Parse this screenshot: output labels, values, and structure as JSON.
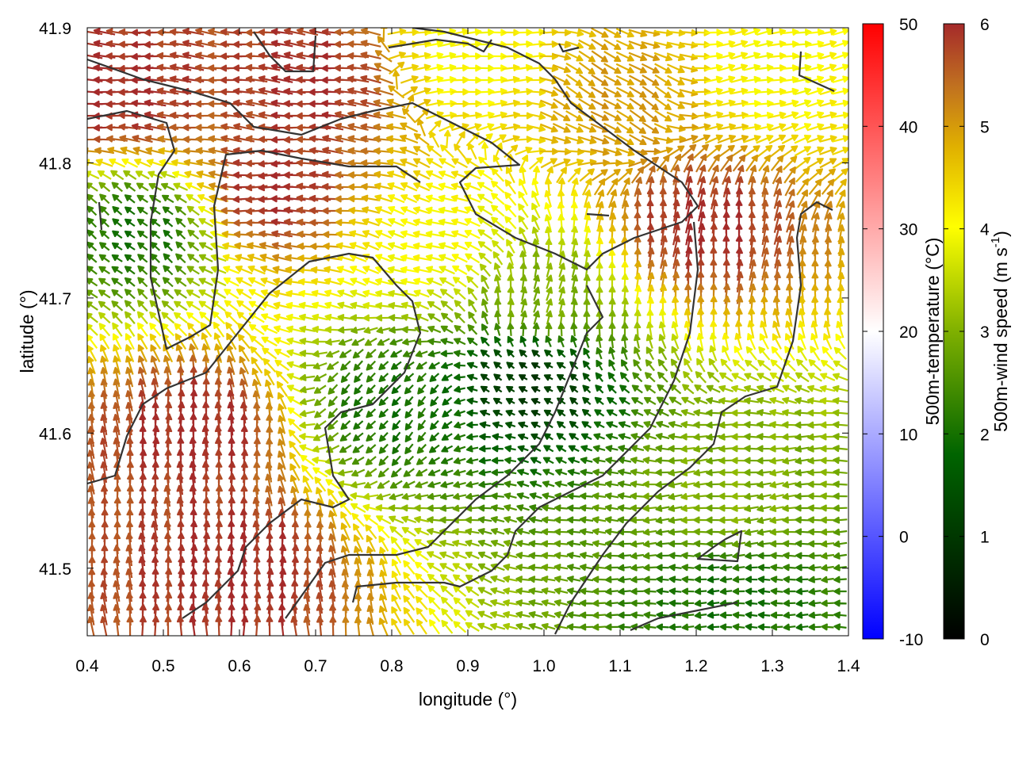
{
  "chart_data": {
    "type": "quiver",
    "xlabel": "longitude (°)",
    "ylabel": "latitude (°)",
    "xlim": [
      0.4,
      1.4
    ],
    "ylim": [
      41.45,
      41.9
    ],
    "x_ticks": [
      "0.4",
      "0.5",
      "0.6",
      "0.7",
      "0.8",
      "0.9",
      "1.0",
      "1.1",
      "1.2",
      "1.3",
      "1.4"
    ],
    "y_ticks": [
      "41.5",
      "41.6",
      "41.7",
      "41.8",
      "41.9"
    ],
    "temperature_colorbar": {
      "label": "500m-temperature (°C)",
      "range": [
        -10,
        50
      ],
      "ticks": [
        "-10",
        "0",
        "10",
        "20",
        "30",
        "40",
        "50"
      ],
      "colors": [
        "#0000ff",
        "#ffffff",
        "#ff0000"
      ]
    },
    "wind_colorbar": {
      "label_main": "500m-wind speed (m s",
      "label_sup": "-1",
      "label_end": ")",
      "range": [
        0,
        6
      ],
      "ticks": [
        "0",
        "1",
        "2",
        "3",
        "4",
        "5",
        "6"
      ],
      "colors": [
        "#000000",
        "#006400",
        "#7fb000",
        "#ffff00",
        "#e0b000",
        "#c07020",
        "#a52a2a"
      ]
    },
    "coastline_color": "#333333",
    "wind_field": {
      "description_points": [
        {
          "lon": 0.45,
          "lat": 41.85,
          "u": -1.0,
          "v": 0.05,
          "speed": 6
        },
        {
          "lon": 0.7,
          "lat": 41.86,
          "u": -1.0,
          "v": 0.1,
          "speed": 6
        },
        {
          "lon": 0.9,
          "lat": 41.88,
          "u": 1.0,
          "v": 0.1,
          "speed": 4
        },
        {
          "lon": 1.1,
          "lat": 41.85,
          "u": 0.6,
          "v": -0.4,
          "speed": 5
        },
        {
          "lon": 1.3,
          "lat": 41.87,
          "u": 1.0,
          "v": 0.2,
          "speed": 4
        },
        {
          "lon": 0.47,
          "lat": 41.75,
          "u": -0.7,
          "v": 0.6,
          "speed": 2
        },
        {
          "lon": 0.65,
          "lat": 41.78,
          "u": -1.0,
          "v": 0.0,
          "speed": 6
        },
        {
          "lon": 0.85,
          "lat": 41.74,
          "u": -1.0,
          "v": 0.3,
          "speed": 4
        },
        {
          "lon": 1.0,
          "lat": 41.7,
          "u": 0.2,
          "v": 0.9,
          "speed": 3
        },
        {
          "lon": 1.2,
          "lat": 41.75,
          "u": 0.1,
          "v": 1.0,
          "speed": 6
        },
        {
          "lon": 0.55,
          "lat": 41.6,
          "u": 0.0,
          "v": 1.0,
          "speed": 6
        },
        {
          "lon": 0.8,
          "lat": 41.62,
          "u": -0.6,
          "v": -0.7,
          "speed": 2
        },
        {
          "lon": 0.98,
          "lat": 41.64,
          "u": -0.5,
          "v": 0.3,
          "speed": 1
        },
        {
          "lon": 1.25,
          "lat": 41.55,
          "u": -1.0,
          "v": -0.1,
          "speed": 3
        },
        {
          "lon": 0.6,
          "lat": 41.5,
          "u": 0.0,
          "v": 1.0,
          "speed": 6
        },
        {
          "lon": 1.25,
          "lat": 41.48,
          "u": -1.0,
          "v": 0.0,
          "speed": 2
        }
      ]
    }
  }
}
